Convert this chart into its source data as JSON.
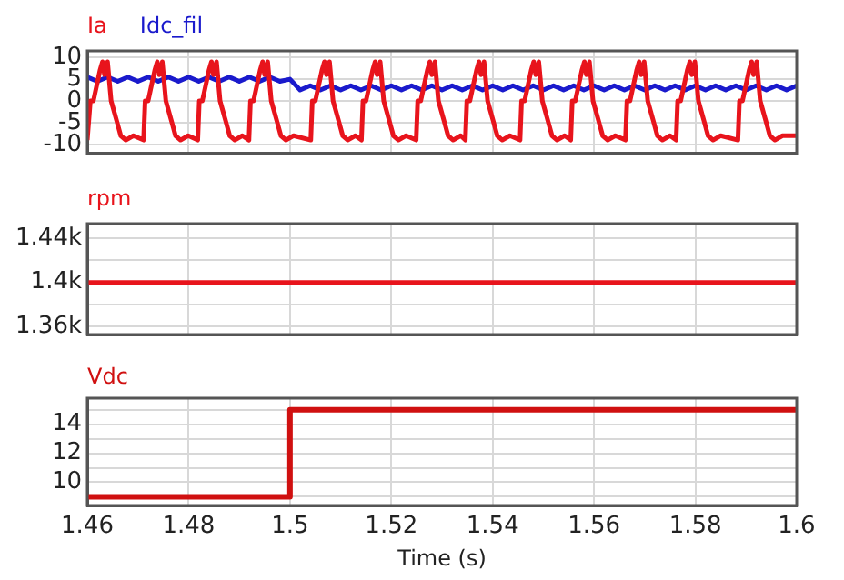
{
  "chart_data": [
    {
      "type": "line",
      "legend": "top left",
      "grid": true,
      "tick_labels": "y",
      "xlim": [
        1.46,
        1.6
      ],
      "xticks": [
        1.46,
        1.48,
        1.5,
        1.52,
        1.54,
        1.56,
        1.58,
        1.6
      ],
      "ylim": [
        -12,
        11.5
      ],
      "yticks": [
        -10,
        -5,
        0,
        5,
        10
      ],
      "series": [
        {
          "name": "Ia",
          "color": "#e8141c",
          "x": [
            1.46,
            1.4603,
            1.4606,
            1.4612,
            1.4625,
            1.463,
            1.4634,
            1.464,
            1.4647,
            1.4659,
            1.4666,
            1.4676,
            1.4691,
            1.4711,
            1.4714,
            1.472,
            1.4733,
            1.4738,
            1.4742,
            1.4748,
            1.4755,
            1.4767,
            1.4774,
            1.4784,
            1.4799,
            1.4818,
            1.4821,
            1.4827,
            1.484,
            1.4845,
            1.4849,
            1.4855,
            1.4862,
            1.4874,
            1.4881,
            1.4891,
            1.4906,
            1.4919,
            1.4922,
            1.4928,
            1.4941,
            1.4946,
            1.495,
            1.4956,
            1.4963,
            1.4975,
            1.4982,
            1.4992,
            1.5007,
            1.5041,
            1.5044,
            1.505,
            1.5063,
            1.5068,
            1.5072,
            1.5078,
            1.5085,
            1.5097,
            1.5104,
            1.5114,
            1.5129,
            1.5141,
            1.5144,
            1.515,
            1.5163,
            1.5168,
            1.5172,
            1.5178,
            1.5185,
            1.5197,
            1.5204,
            1.5214,
            1.5229,
            1.5249,
            1.5252,
            1.5258,
            1.5271,
            1.5276,
            1.528,
            1.5286,
            1.5293,
            1.5305,
            1.5312,
            1.5322,
            1.5337,
            1.5346,
            1.5349,
            1.5355,
            1.5368,
            1.5373,
            1.5377,
            1.5383,
            1.539,
            1.5402,
            1.5409,
            1.5419,
            1.5434,
            1.5454,
            1.5457,
            1.5463,
            1.5476,
            1.5481,
            1.5485,
            1.5491,
            1.5498,
            1.551,
            1.5517,
            1.5527,
            1.5542,
            1.5554,
            1.5557,
            1.5563,
            1.5576,
            1.5581,
            1.5585,
            1.5591,
            1.5598,
            1.561,
            1.5617,
            1.5627,
            1.5642,
            1.5662,
            1.5665,
            1.5671,
            1.5684,
            1.5689,
            1.5693,
            1.5699,
            1.5706,
            1.5718,
            1.5725,
            1.5735,
            1.575,
            1.5762,
            1.5765,
            1.5771,
            1.5784,
            1.5789,
            1.5793,
            1.5799,
            1.5806,
            1.5818,
            1.5825,
            1.5835,
            1.585,
            1.5884,
            1.5887,
            1.5893,
            1.5906,
            1.5911,
            1.5915,
            1.5921,
            1.5928,
            1.594,
            1.5947,
            1.5957,
            1.5972,
            1.6
          ],
          "values": [
            -9,
            -9,
            0,
            0,
            7,
            9,
            6,
            9,
            0,
            -5,
            -8,
            -9,
            -8,
            -9,
            0,
            0,
            7,
            9,
            6,
            9,
            0,
            -5,
            -8,
            -9,
            -8,
            -9,
            0,
            0,
            7,
            9,
            6,
            9,
            0,
            -5,
            -8,
            -9,
            -8,
            -9,
            0,
            0,
            7,
            9,
            6,
            9,
            0,
            -5,
            -8,
            -9,
            -8,
            -9,
            0,
            0,
            7,
            9,
            6,
            9,
            0,
            -5,
            -8,
            -9,
            -8,
            -9,
            0,
            0,
            7,
            9,
            6,
            9,
            0,
            -5,
            -8,
            -9,
            -8,
            -9,
            0,
            0,
            7,
            9,
            6,
            9,
            0,
            -5,
            -8,
            -9,
            -8,
            -9,
            0,
            0,
            7,
            9,
            6,
            9,
            0,
            -5,
            -8,
            -9,
            -8,
            -9,
            0,
            0,
            7,
            9,
            6,
            9,
            0,
            -5,
            -8,
            -9,
            -8,
            -9,
            0,
            0,
            7,
            9,
            6,
            9,
            0,
            -5,
            -8,
            -9,
            -8,
            -9,
            0,
            0,
            7,
            9,
            6,
            9,
            0,
            -5,
            -8,
            -9,
            -8,
            -9,
            0,
            0,
            7,
            9,
            6,
            9,
            0,
            -5,
            -8,
            -9,
            -8,
            -9,
            0,
            0,
            7,
            9,
            6,
            9,
            0,
            -5,
            -8,
            -9,
            -8,
            -8
          ]
        },
        {
          "name": "Idc_fil",
          "color": "#1a1acc",
          "x": [
            1.46,
            1.462,
            1.464,
            1.466,
            1.468,
            1.47,
            1.472,
            1.474,
            1.476,
            1.478,
            1.48,
            1.482,
            1.484,
            1.486,
            1.488,
            1.49,
            1.492,
            1.494,
            1.496,
            1.498,
            1.5,
            1.502,
            1.504,
            1.506,
            1.508,
            1.51,
            1.512,
            1.514,
            1.516,
            1.518,
            1.52,
            1.522,
            1.524,
            1.526,
            1.528,
            1.53,
            1.532,
            1.534,
            1.536,
            1.538,
            1.54,
            1.542,
            1.544,
            1.546,
            1.548,
            1.55,
            1.552,
            1.554,
            1.556,
            1.558,
            1.56,
            1.562,
            1.564,
            1.566,
            1.568,
            1.57,
            1.572,
            1.574,
            1.576,
            1.578,
            1.58,
            1.582,
            1.584,
            1.586,
            1.588,
            1.59,
            1.592,
            1.594,
            1.596,
            1.598,
            1.6
          ],
          "values": [
            5.5,
            4.5,
            5.5,
            4.5,
            5.5,
            4.5,
            5.5,
            4.5,
            5.5,
            4.5,
            5.5,
            4.5,
            5.5,
            4.5,
            5.5,
            4.5,
            5.5,
            4.5,
            5.5,
            4.5,
            5,
            2.5,
            3.5,
            2.5,
            3.5,
            2.5,
            3.5,
            2.5,
            3.5,
            2.5,
            3.5,
            2.5,
            3.5,
            2.5,
            3.5,
            2.5,
            3.5,
            2.5,
            3.5,
            2.5,
            3.5,
            2.5,
            3.5,
            2.5,
            3.5,
            2.5,
            3.5,
            2.5,
            3.5,
            2.5,
            3.5,
            2.5,
            3.5,
            2.5,
            3.5,
            2.5,
            3.5,
            2.5,
            3.5,
            2.5,
            3.5,
            2.5,
            3.5,
            2.5,
            3.5,
            2.5,
            3.5,
            2.5,
            3.5,
            2.5,
            3.5
          ]
        }
      ]
    },
    {
      "type": "line",
      "legend": "top left",
      "grid": true,
      "tick_labels": "y",
      "xlim": [
        1.46,
        1.6
      ],
      "xticks": [
        1.46,
        1.48,
        1.5,
        1.52,
        1.54,
        1.56,
        1.58,
        1.6
      ],
      "ylim": [
        1353,
        1453
      ],
      "yticks": [
        {
          "value": 1360,
          "label": "1.36k"
        },
        {
          "value": 1380,
          "label": null
        },
        {
          "value": 1400,
          "label": "1.4k"
        },
        {
          "value": 1420,
          "label": null
        },
        {
          "value": 1440,
          "label": "1.44k"
        }
      ],
      "series": [
        {
          "name": "rpm",
          "color": "#e8141c",
          "x": [
            1.46,
            1.47,
            1.48,
            1.49,
            1.5,
            1.51,
            1.52,
            1.53,
            1.54,
            1.55,
            1.56,
            1.57,
            1.58,
            1.59,
            1.6
          ],
          "values": [
            1400,
            1400,
            1400,
            1400,
            1400,
            1400,
            1400,
            1400,
            1400,
            1400,
            1400,
            1400,
            1400,
            1400,
            1400
          ]
        }
      ]
    },
    {
      "type": "step",
      "legend": "top left",
      "grid": true,
      "xlabel": "Time (s)",
      "xlim": [
        1.46,
        1.6
      ],
      "xticks": [
        1.46,
        1.48,
        1.5,
        1.52,
        1.54,
        1.56,
        1.58,
        1.6
      ],
      "ylim": [
        8.4,
        15.8
      ],
      "yticks": [
        {
          "value": 9,
          "label": null
        },
        10,
        {
          "value": 11,
          "label": null
        },
        12,
        {
          "value": 13,
          "label": null
        },
        14,
        {
          "value": 15,
          "label": null
        }
      ],
      "series": [
        {
          "name": "Vdc",
          "color": "#d01010",
          "x": [
            1.46,
            1.5,
            1.6
          ],
          "values": [
            9,
            15,
            15
          ]
        }
      ]
    }
  ]
}
